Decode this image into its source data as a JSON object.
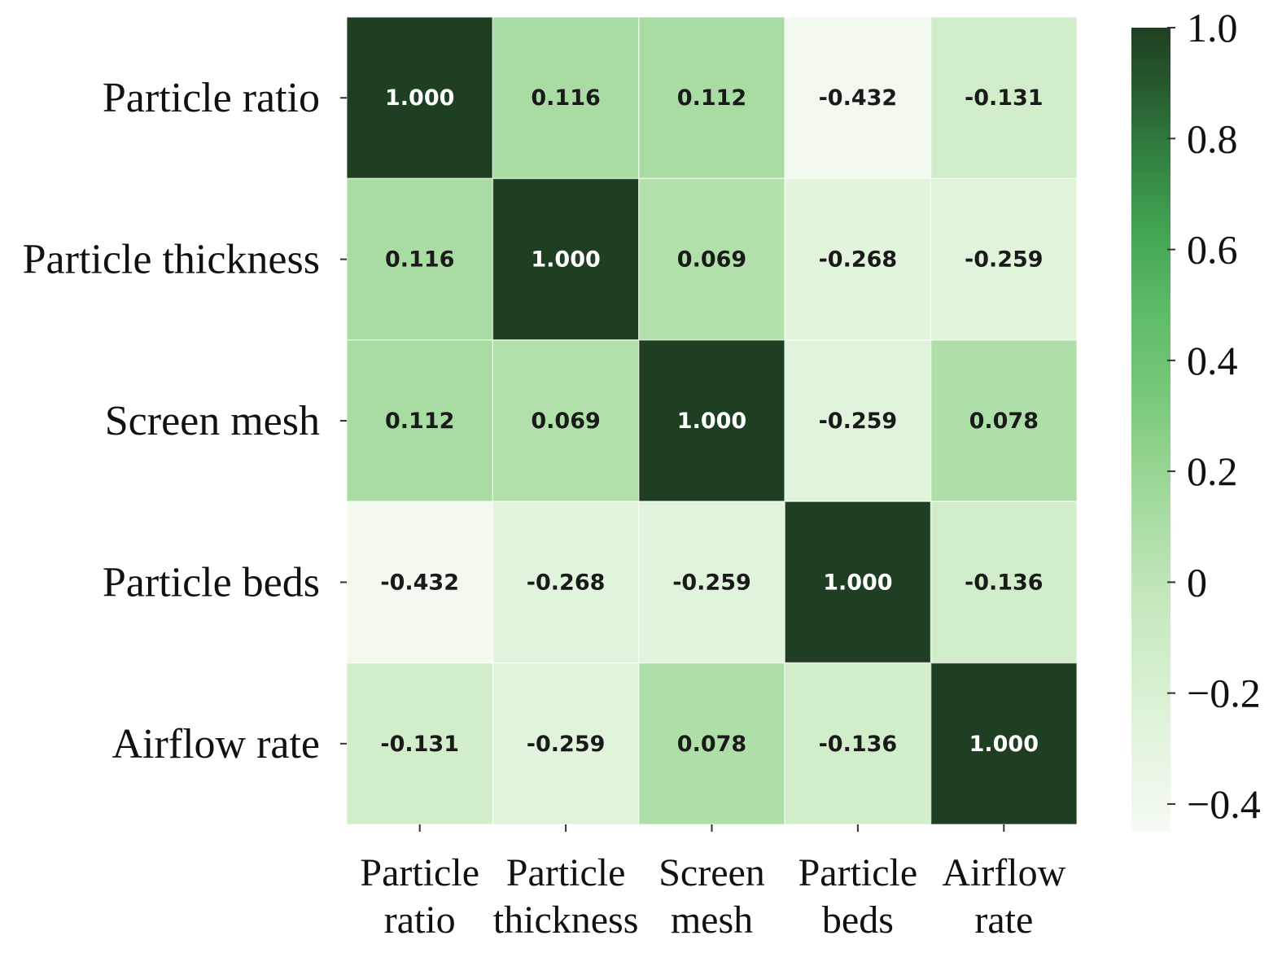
{
  "chart_data": {
    "type": "heatmap",
    "title": "",
    "xlabel": "",
    "ylabel": "",
    "rows": [
      "Particle ratio",
      "Particle thickness",
      "Screen mesh",
      "Particle beds",
      "Airflow rate"
    ],
    "columns": [
      [
        "Particle",
        "ratio"
      ],
      [
        "Particle",
        "thickness"
      ],
      [
        "Screen",
        "mesh"
      ],
      [
        "Particle",
        "beds"
      ],
      [
        "Airflow",
        "rate"
      ]
    ],
    "values": [
      [
        1.0,
        0.116,
        0.112,
        -0.432,
        -0.131
      ],
      [
        0.116,
        1.0,
        0.069,
        -0.268,
        -0.259
      ],
      [
        0.112,
        0.069,
        1.0,
        -0.259,
        0.078
      ],
      [
        -0.432,
        -0.268,
        -0.259,
        1.0,
        -0.136
      ],
      [
        -0.131,
        -0.259,
        0.078,
        -0.136,
        1.0
      ]
    ],
    "value_labels": [
      [
        "1.000",
        "0.116",
        "0.112",
        "-0.432",
        "-0.131"
      ],
      [
        "0.116",
        "1.000",
        "0.069",
        "-0.268",
        "-0.259"
      ],
      [
        "0.112",
        "0.069",
        "1.000",
        "-0.259",
        "0.078"
      ],
      [
        "-0.432",
        "-0.268",
        "-0.259",
        "1.000",
        "-0.136"
      ],
      [
        "-0.131",
        "-0.259",
        "0.078",
        "-0.136",
        "1.000"
      ]
    ],
    "colorbar": {
      "range": [
        -0.45,
        1.0
      ],
      "ticks": [
        1.0,
        0.8,
        0.6,
        0.4,
        0.2,
        0,
        -0.2,
        -0.4
      ],
      "tick_labels": [
        "1.0",
        "0.8",
        "0.6",
        "0.4",
        "0.2",
        "0",
        "−0.2",
        "−0.4"
      ],
      "colormap": "Greens",
      "low_color": "#f4fbf1",
      "high_color": "#1f3f22"
    }
  }
}
